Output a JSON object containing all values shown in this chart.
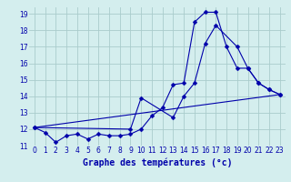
{
  "title": "Graphe des températures (°c)",
  "bg_color": "#d4eeee",
  "grid_color": "#aacccc",
  "line_color": "#0000aa",
  "xlim": [
    -0.5,
    23.5
  ],
  "ylim": [
    11,
    19.4
  ],
  "yticks": [
    11,
    12,
    13,
    14,
    15,
    16,
    17,
    18,
    19
  ],
  "xticks": [
    0,
    1,
    2,
    3,
    4,
    5,
    6,
    7,
    8,
    9,
    10,
    11,
    12,
    13,
    14,
    15,
    16,
    17,
    18,
    19,
    20,
    21,
    22,
    23
  ],
  "series": [
    {
      "x": [
        0,
        1,
        2,
        3,
        4,
        5,
        6,
        7,
        8,
        9,
        10,
        11,
        12,
        13,
        14,
        15,
        16,
        17,
        18,
        19,
        20,
        21,
        22,
        23
      ],
      "y": [
        12.1,
        11.8,
        11.2,
        11.6,
        11.7,
        11.4,
        11.7,
        11.6,
        11.6,
        11.7,
        12.0,
        12.8,
        13.3,
        14.7,
        14.8,
        18.5,
        19.1,
        19.1,
        17.0,
        15.7,
        15.7,
        14.8,
        14.4,
        14.1
      ],
      "marker": "D",
      "marker_size": 2.5
    },
    {
      "x": [
        0,
        9,
        10,
        13,
        14,
        15,
        16,
        17,
        19,
        20,
        21,
        22,
        23
      ],
      "y": [
        12.1,
        12.0,
        13.9,
        12.7,
        14.0,
        14.8,
        17.2,
        18.3,
        17.0,
        15.7,
        14.8,
        14.4,
        14.1
      ],
      "marker": "D",
      "marker_size": 2.5
    },
    {
      "x": [
        0,
        23
      ],
      "y": [
        12.1,
        14.1
      ],
      "marker": null,
      "marker_size": 0
    }
  ],
  "xlabel": "Graphe des températures (°c)",
  "xlabel_fontsize": 7,
  "tick_fontsize": 5.5,
  "figsize": [
    3.2,
    2.0
  ],
  "dpi": 100
}
